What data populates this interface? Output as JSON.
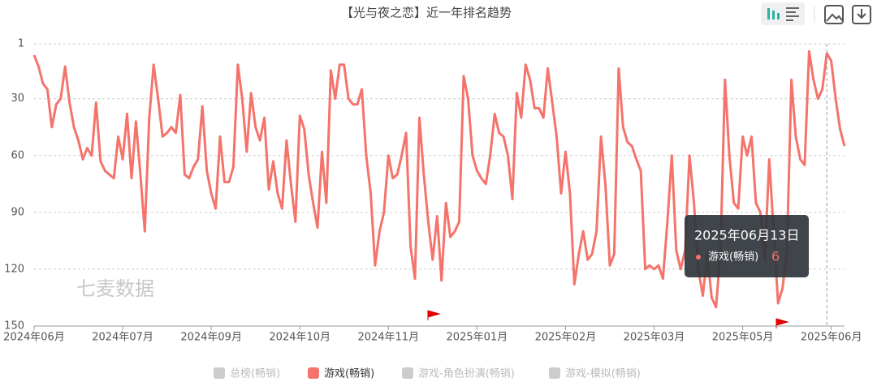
{
  "chart_data": {
    "type": "line",
    "title": "【光与夜之恋】近一年排名趋势",
    "watermark": "七麦数据",
    "categories": [
      "2024年06月",
      null,
      null,
      null,
      null,
      null,
      null,
      null,
      null,
      null,
      null,
      null,
      null,
      null,
      null,
      null,
      null,
      null,
      null,
      null,
      "2024年07月",
      null,
      null,
      null,
      null,
      null,
      null,
      null,
      null,
      null,
      null,
      null,
      null,
      null,
      null,
      null,
      null,
      null,
      null,
      null,
      "2024年09月",
      null,
      null,
      null,
      null,
      null,
      null,
      null,
      null,
      null,
      null,
      null,
      null,
      null,
      null,
      null,
      null,
      null,
      null,
      null,
      "2024年10月",
      null,
      null,
      null,
      null,
      null,
      null,
      null,
      null,
      null,
      null,
      null,
      null,
      null,
      null,
      null,
      null,
      null,
      null,
      null,
      "2024年11月",
      null,
      null,
      null,
      null,
      null,
      null,
      null,
      null,
      null,
      null,
      null,
      null,
      null,
      null,
      null,
      null,
      null,
      null,
      null,
      "2025年01月",
      null,
      null,
      null,
      null,
      null,
      null,
      null,
      null,
      null,
      null,
      null,
      null,
      null,
      null,
      null,
      null,
      null,
      null,
      null,
      "2025年02月",
      null,
      null,
      null,
      null,
      null,
      null,
      null,
      null,
      null,
      null,
      null,
      null,
      null,
      null,
      null,
      null,
      null,
      null,
      null,
      "2025年03月",
      null,
      null,
      null,
      null,
      null,
      null,
      null,
      null,
      null,
      null,
      null,
      null,
      null,
      null,
      null,
      null,
      null,
      null,
      null,
      "2025年05月",
      null,
      null,
      null,
      null,
      null,
      null,
      null,
      null,
      null,
      null,
      null,
      null,
      null,
      null,
      null,
      null,
      null,
      null,
      null,
      "2025年06月",
      null,
      null,
      null
    ],
    "series": [
      {
        "name": "游戏(畅销)",
        "color": "#f4736b",
        "values": [
          7,
          13,
          22,
          25,
          45,
          33,
          30,
          13,
          32,
          45,
          52,
          62,
          56,
          60,
          32,
          63,
          68,
          70,
          72,
          50,
          62,
          38,
          72,
          42,
          70,
          100,
          40,
          12,
          30,
          50,
          48,
          45,
          48,
          28,
          70,
          72,
          66,
          62,
          34,
          68,
          80,
          88,
          50,
          74,
          74,
          66,
          12,
          30,
          58,
          27,
          45,
          52,
          40,
          78,
          63,
          80,
          88,
          52,
          75,
          95,
          39,
          46,
          70,
          85,
          98,
          58,
          85,
          15,
          30,
          12,
          12,
          30,
          33,
          33,
          25,
          60,
          80,
          118,
          100,
          90,
          60,
          72,
          70,
          60,
          48,
          108,
          125,
          40,
          70,
          95,
          115,
          92,
          126,
          85,
          103,
          100,
          95,
          18,
          30,
          60,
          68,
          72,
          75,
          60,
          38,
          48,
          50,
          60,
          83,
          27,
          40,
          12,
          20,
          35,
          35,
          40,
          14,
          32,
          50,
          80,
          58,
          80,
          128,
          112,
          100,
          115,
          112,
          100,
          50,
          75,
          118,
          112,
          14,
          45,
          53,
          55,
          62,
          68,
          120,
          118,
          120,
          118,
          125,
          95,
          60,
          110,
          120,
          110,
          60,
          85,
          120,
          134,
          112,
          135,
          140,
          110,
          20,
          60,
          85,
          88,
          50,
          60,
          50,
          85,
          90,
          115,
          62,
          100,
          138,
          130,
          110,
          20,
          50,
          62,
          65,
          5,
          20,
          30,
          25,
          6,
          10,
          30,
          46,
          55
        ]
      }
    ],
    "legend": [
      {
        "name": "总榜(畅销)",
        "color": "#cccccc"
      },
      {
        "name": "游戏(畅销)",
        "color": "#f4736b"
      },
      {
        "name": "游戏-角色扮演(畅销)",
        "color": "#cccccc"
      },
      {
        "name": "游戏-模拟(畅销)",
        "color": "#cccccc"
      }
    ],
    "ylim": [
      1,
      150
    ],
    "y_inverted": true,
    "yticks": [
      1,
      30,
      60,
      90,
      120,
      150
    ],
    "grid": true,
    "tooltip": {
      "date": "2025年06月13日",
      "series": "游戏(畅销)",
      "value": 6
    }
  }
}
